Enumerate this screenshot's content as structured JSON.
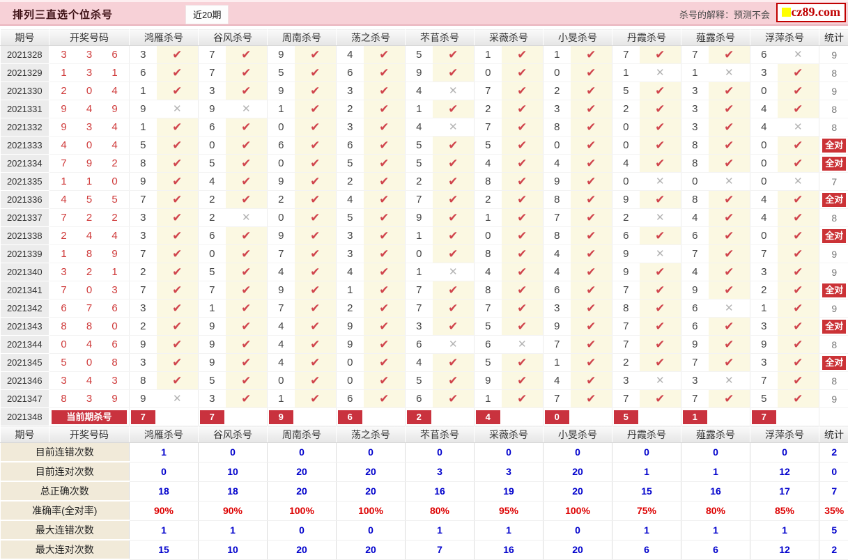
{
  "topbar": {
    "title": "排列三直选个位杀号",
    "tab": "近20期",
    "note": "杀号的解释：预测不会",
    "logo": "cz89.com"
  },
  "columns": {
    "period": "期号",
    "numbers": "开奖号码",
    "stat": "统计"
  },
  "killers": [
    "鸿雁杀号",
    "谷风杀号",
    "周南杀号",
    "荡之杀号",
    "芣苢杀号",
    "采薇杀号",
    "小旻杀号",
    "丹霞杀号",
    "薤露杀号",
    "浮萍杀号"
  ],
  "icons": {
    "check": "✔",
    "cross": "✕"
  },
  "rows": [
    {
      "period": "2021328",
      "numbers": "336",
      "kills": [
        3,
        7,
        9,
        4,
        5,
        1,
        1,
        7,
        7,
        6
      ],
      "marks": [
        1,
        1,
        1,
        1,
        1,
        1,
        1,
        1,
        1,
        0
      ],
      "stat": "9",
      "all": false
    },
    {
      "period": "2021329",
      "numbers": "131",
      "kills": [
        6,
        7,
        5,
        6,
        9,
        0,
        0,
        1,
        1,
        3
      ],
      "marks": [
        1,
        1,
        1,
        1,
        1,
        1,
        1,
        0,
        0,
        1
      ],
      "stat": "8",
      "all": false
    },
    {
      "period": "2021330",
      "numbers": "204",
      "kills": [
        1,
        3,
        9,
        3,
        4,
        7,
        2,
        5,
        3,
        0
      ],
      "marks": [
        1,
        1,
        1,
        1,
        0,
        1,
        1,
        1,
        1,
        1
      ],
      "stat": "9",
      "all": false
    },
    {
      "period": "2021331",
      "numbers": "949",
      "kills": [
        9,
        9,
        1,
        2,
        1,
        2,
        3,
        2,
        3,
        4
      ],
      "marks": [
        0,
        0,
        1,
        1,
        1,
        1,
        1,
        1,
        1,
        1
      ],
      "stat": "8",
      "all": false
    },
    {
      "period": "2021332",
      "numbers": "934",
      "kills": [
        1,
        6,
        0,
        3,
        4,
        7,
        8,
        0,
        3,
        4
      ],
      "marks": [
        1,
        1,
        1,
        1,
        0,
        1,
        1,
        1,
        1,
        0
      ],
      "stat": "8",
      "all": false
    },
    {
      "period": "2021333",
      "numbers": "404",
      "kills": [
        5,
        0,
        6,
        6,
        5,
        5,
        0,
        0,
        8,
        0
      ],
      "marks": [
        1,
        1,
        1,
        1,
        1,
        1,
        1,
        1,
        1,
        1
      ],
      "stat": "全对",
      "all": true
    },
    {
      "period": "2021334",
      "numbers": "792",
      "kills": [
        8,
        5,
        0,
        5,
        5,
        4,
        4,
        4,
        8,
        0
      ],
      "marks": [
        1,
        1,
        1,
        1,
        1,
        1,
        1,
        1,
        1,
        1
      ],
      "stat": "全对",
      "all": true
    },
    {
      "period": "2021335",
      "numbers": "110",
      "kills": [
        9,
        4,
        9,
        2,
        2,
        8,
        9,
        0,
        0,
        0
      ],
      "marks": [
        1,
        1,
        1,
        1,
        1,
        1,
        1,
        0,
        0,
        0
      ],
      "stat": "7",
      "all": false
    },
    {
      "period": "2021336",
      "numbers": "455",
      "kills": [
        7,
        2,
        2,
        4,
        7,
        2,
        8,
        9,
        8,
        4
      ],
      "marks": [
        1,
        1,
        1,
        1,
        1,
        1,
        1,
        1,
        1,
        1
      ],
      "stat": "全对",
      "all": true
    },
    {
      "period": "2021337",
      "numbers": "722",
      "kills": [
        3,
        2,
        0,
        5,
        9,
        1,
        7,
        2,
        4,
        4
      ],
      "marks": [
        1,
        0,
        1,
        1,
        1,
        1,
        1,
        0,
        1,
        1
      ],
      "stat": "8",
      "all": false
    },
    {
      "period": "2021338",
      "numbers": "244",
      "kills": [
        3,
        6,
        9,
        3,
        1,
        0,
        8,
        6,
        6,
        0
      ],
      "marks": [
        1,
        1,
        1,
        1,
        1,
        1,
        1,
        1,
        1,
        1
      ],
      "stat": "全对",
      "all": true
    },
    {
      "period": "2021339",
      "numbers": "189",
      "kills": [
        7,
        0,
        7,
        3,
        0,
        8,
        4,
        9,
        7,
        7
      ],
      "marks": [
        1,
        1,
        1,
        1,
        1,
        1,
        1,
        0,
        1,
        1
      ],
      "stat": "9",
      "all": false
    },
    {
      "period": "2021340",
      "numbers": "321",
      "kills": [
        2,
        5,
        4,
        4,
        1,
        4,
        4,
        9,
        4,
        3
      ],
      "marks": [
        1,
        1,
        1,
        1,
        0,
        1,
        1,
        1,
        1,
        1
      ],
      "stat": "9",
      "all": false
    },
    {
      "period": "2021341",
      "numbers": "703",
      "kills": [
        7,
        7,
        9,
        1,
        7,
        8,
        6,
        7,
        9,
        2
      ],
      "marks": [
        1,
        1,
        1,
        1,
        1,
        1,
        1,
        1,
        1,
        1
      ],
      "stat": "全对",
      "all": true
    },
    {
      "period": "2021342",
      "numbers": "676",
      "kills": [
        3,
        1,
        7,
        2,
        7,
        7,
        3,
        8,
        6,
        1
      ],
      "marks": [
        1,
        1,
        1,
        1,
        1,
        1,
        1,
        1,
        0,
        1
      ],
      "stat": "9",
      "all": false
    },
    {
      "period": "2021343",
      "numbers": "880",
      "kills": [
        2,
        9,
        4,
        9,
        3,
        5,
        9,
        7,
        6,
        3
      ],
      "marks": [
        1,
        1,
        1,
        1,
        1,
        1,
        1,
        1,
        1,
        1
      ],
      "stat": "全对",
      "all": true
    },
    {
      "period": "2021344",
      "numbers": "046",
      "kills": [
        9,
        9,
        4,
        9,
        6,
        6,
        7,
        7,
        9,
        9
      ],
      "marks": [
        1,
        1,
        1,
        1,
        0,
        0,
        1,
        1,
        1,
        1
      ],
      "stat": "8",
      "all": false
    },
    {
      "period": "2021345",
      "numbers": "508",
      "kills": [
        3,
        9,
        4,
        0,
        4,
        5,
        1,
        2,
        7,
        3
      ],
      "marks": [
        1,
        1,
        1,
        1,
        1,
        1,
        1,
        1,
        1,
        1
      ],
      "stat": "全对",
      "all": true
    },
    {
      "period": "2021346",
      "numbers": "343",
      "kills": [
        8,
        5,
        0,
        0,
        5,
        9,
        4,
        3,
        3,
        7
      ],
      "marks": [
        1,
        1,
        1,
        1,
        1,
        1,
        1,
        0,
        0,
        1
      ],
      "stat": "8",
      "all": false
    },
    {
      "period": "2021347",
      "numbers": "839",
      "kills": [
        9,
        3,
        1,
        6,
        6,
        1,
        7,
        7,
        7,
        5
      ],
      "marks": [
        0,
        1,
        1,
        1,
        1,
        1,
        1,
        1,
        1,
        1
      ],
      "stat": "9",
      "all": false
    }
  ],
  "current": {
    "period": "2021348",
    "label": "当前期杀号",
    "kills": [
      7,
      7,
      9,
      6,
      2,
      4,
      0,
      5,
      1,
      7
    ]
  },
  "summary_rows": [
    {
      "label": "目前连错次数",
      "values": [
        "1",
        "0",
        "0",
        "0",
        "0",
        "0",
        "0",
        "0",
        "0",
        "0"
      ],
      "stat": "2",
      "red": false
    },
    {
      "label": "目前连对次数",
      "values": [
        "0",
        "10",
        "20",
        "20",
        "3",
        "3",
        "20",
        "1",
        "1",
        "12"
      ],
      "stat": "0",
      "red": false
    },
    {
      "label": "总正确次数",
      "values": [
        "18",
        "18",
        "20",
        "20",
        "16",
        "19",
        "20",
        "15",
        "16",
        "17"
      ],
      "stat": "7",
      "red": false
    },
    {
      "label": "准确率(全对率)",
      "values": [
        "90%",
        "90%",
        "100%",
        "100%",
        "80%",
        "95%",
        "100%",
        "75%",
        "80%",
        "85%"
      ],
      "stat": "35%",
      "red": true
    },
    {
      "label": "最大连错次数",
      "values": [
        "1",
        "1",
        "0",
        "0",
        "1",
        "1",
        "0",
        "1",
        "1",
        "1"
      ],
      "stat": "5",
      "red": false
    },
    {
      "label": "最大连对次数",
      "values": [
        "15",
        "10",
        "20",
        "20",
        "7",
        "16",
        "20",
        "6",
        "6",
        "12"
      ],
      "stat": "2",
      "red": false
    }
  ],
  "colors": {
    "topbar_pink": "#f7d1d7",
    "check_red": "#d0454d",
    "cross_gray": "#b3b3b3",
    "badge_red": "#cb3236",
    "summary_blue": "#0000cc",
    "summary_red": "#dd0000",
    "mark_cell_yellow": "#fbf8e2",
    "logo_red": "#c00000",
    "logo_yellow": "#ffff00"
  }
}
